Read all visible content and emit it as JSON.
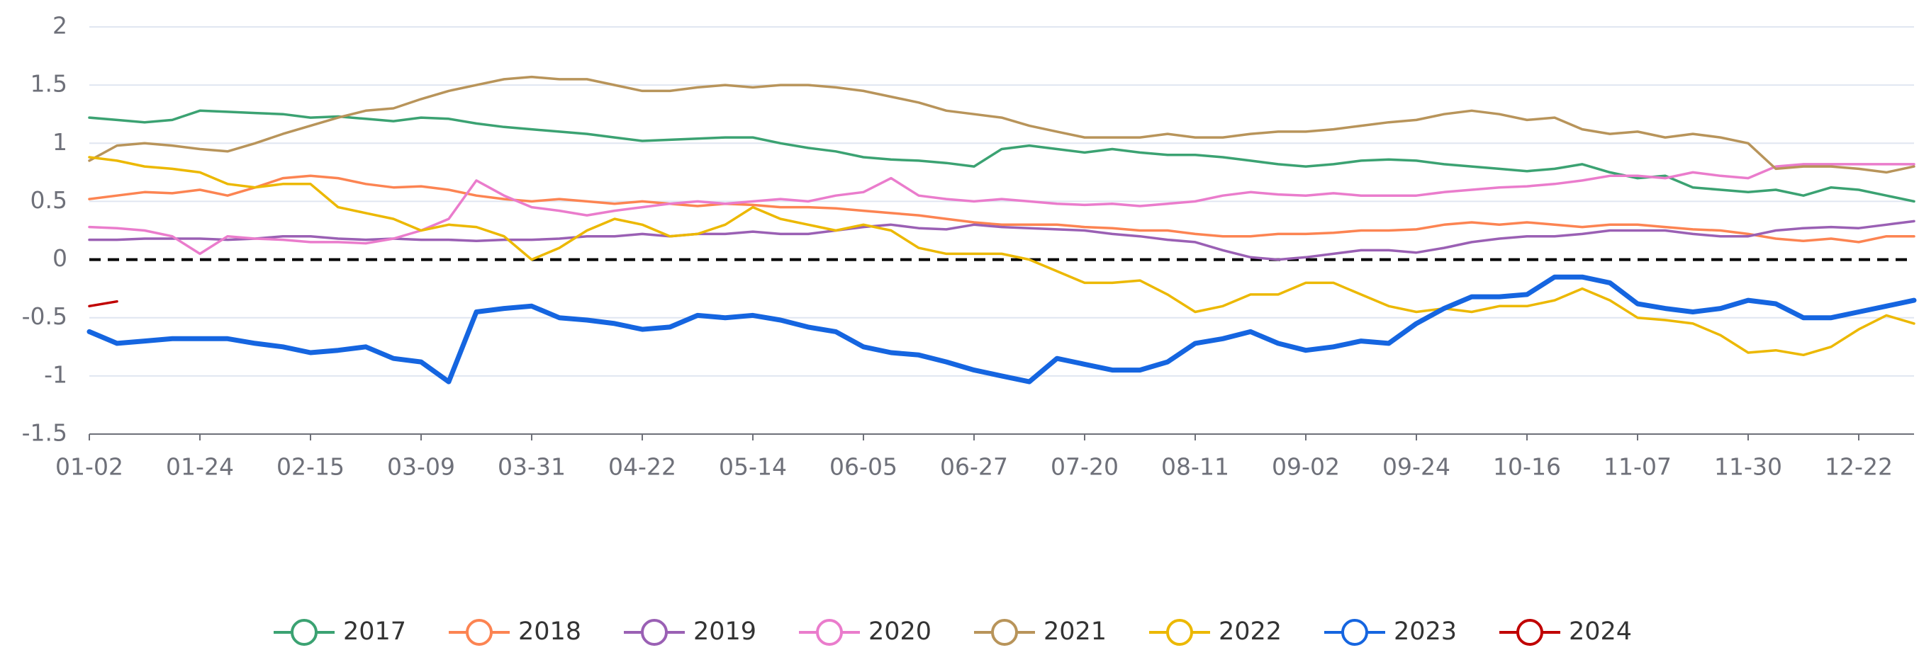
{
  "chart_data": {
    "type": "line",
    "categories": [
      "01-02",
      null,
      null,
      null,
      "01-24",
      null,
      null,
      null,
      "02-15",
      null,
      null,
      null,
      "03-09",
      null,
      null,
      null,
      "03-31",
      null,
      null,
      null,
      "04-22",
      null,
      null,
      null,
      "05-14",
      null,
      null,
      null,
      "06-05",
      null,
      null,
      null,
      "06-27",
      null,
      null,
      null,
      "07-20",
      null,
      null,
      null,
      "08-11",
      null,
      null,
      null,
      "09-02",
      null,
      null,
      null,
      "09-24",
      null,
      null,
      null,
      "10-16",
      null,
      null,
      null,
      "11-07",
      null,
      null,
      null,
      "11-30",
      null,
      null,
      null,
      "12-22",
      null,
      null
    ],
    "series": [
      {
        "name": "2017",
        "color": "#3ba272",
        "values": [
          1.22,
          1.2,
          1.18,
          1.2,
          1.28,
          1.27,
          1.26,
          1.25,
          1.22,
          1.23,
          1.21,
          1.19,
          1.22,
          1.21,
          1.17,
          1.14,
          1.12,
          1.1,
          1.08,
          1.05,
          1.02,
          1.03,
          1.04,
          1.05,
          1.05,
          1.0,
          0.96,
          0.93,
          0.88,
          0.86,
          0.85,
          0.83,
          0.8,
          0.95,
          0.98,
          0.95,
          0.92,
          0.95,
          0.92,
          0.9,
          0.9,
          0.88,
          0.85,
          0.82,
          0.8,
          0.82,
          0.85,
          0.86,
          0.85,
          0.82,
          0.8,
          0.78,
          0.76,
          0.78,
          0.82,
          0.75,
          0.7,
          0.72,
          0.62,
          0.6,
          0.58,
          0.6,
          0.55,
          0.62,
          0.6,
          0.55,
          0.5
        ]
      },
      {
        "name": "2018",
        "color": "#fc8452",
        "values": [
          0.52,
          0.55,
          0.58,
          0.57,
          0.6,
          0.55,
          0.62,
          0.7,
          0.72,
          0.7,
          0.65,
          0.62,
          0.63,
          0.6,
          0.55,
          0.52,
          0.5,
          0.52,
          0.5,
          0.48,
          0.5,
          0.48,
          0.46,
          0.48,
          0.47,
          0.45,
          0.45,
          0.44,
          0.42,
          0.4,
          0.38,
          0.35,
          0.32,
          0.3,
          0.3,
          0.3,
          0.28,
          0.27,
          0.25,
          0.25,
          0.22,
          0.2,
          0.2,
          0.22,
          0.22,
          0.23,
          0.25,
          0.25,
          0.26,
          0.3,
          0.32,
          0.3,
          0.32,
          0.3,
          0.28,
          0.3,
          0.3,
          0.28,
          0.26,
          0.25,
          0.22,
          0.18,
          0.16,
          0.18,
          0.15,
          0.2,
          0.2
        ]
      },
      {
        "name": "2019",
        "color": "#9a60b4",
        "values": [
          0.17,
          0.17,
          0.18,
          0.18,
          0.18,
          0.17,
          0.18,
          0.2,
          0.2,
          0.18,
          0.17,
          0.18,
          0.17,
          0.17,
          0.16,
          0.17,
          0.17,
          0.18,
          0.2,
          0.2,
          0.22,
          0.2,
          0.22,
          0.22,
          0.24,
          0.22,
          0.22,
          0.25,
          0.28,
          0.3,
          0.27,
          0.26,
          0.3,
          0.28,
          0.27,
          0.26,
          0.25,
          0.22,
          0.2,
          0.17,
          0.15,
          0.08,
          0.02,
          0.0,
          0.02,
          0.05,
          0.08,
          0.08,
          0.06,
          0.1,
          0.15,
          0.18,
          0.2,
          0.2,
          0.22,
          0.25,
          0.25,
          0.25,
          0.22,
          0.2,
          0.2,
          0.25,
          0.27,
          0.28,
          0.27,
          0.3,
          0.33
        ]
      },
      {
        "name": "2020",
        "color": "#ea7ccc",
        "values": [
          0.28,
          0.27,
          0.25,
          0.2,
          0.05,
          0.2,
          0.18,
          0.17,
          0.15,
          0.15,
          0.14,
          0.18,
          0.25,
          0.35,
          0.68,
          0.55,
          0.45,
          0.42,
          0.38,
          0.42,
          0.45,
          0.48,
          0.5,
          0.48,
          0.5,
          0.52,
          0.5,
          0.55,
          0.58,
          0.7,
          0.55,
          0.52,
          0.5,
          0.52,
          0.5,
          0.48,
          0.47,
          0.48,
          0.46,
          0.48,
          0.5,
          0.55,
          0.58,
          0.56,
          0.55,
          0.57,
          0.55,
          0.55,
          0.55,
          0.58,
          0.6,
          0.62,
          0.63,
          0.65,
          0.68,
          0.72,
          0.72,
          0.7,
          0.75,
          0.72,
          0.7,
          0.8,
          0.82,
          0.82,
          0.82,
          0.82,
          0.82
        ]
      },
      {
        "name": "2021",
        "color": "#b8945a",
        "values": [
          0.85,
          0.98,
          1.0,
          0.98,
          0.95,
          0.93,
          1.0,
          1.08,
          1.15,
          1.22,
          1.28,
          1.3,
          1.38,
          1.45,
          1.5,
          1.55,
          1.57,
          1.55,
          1.55,
          1.5,
          1.45,
          1.45,
          1.48,
          1.5,
          1.48,
          1.5,
          1.5,
          1.48,
          1.45,
          1.4,
          1.35,
          1.28,
          1.25,
          1.22,
          1.15,
          1.1,
          1.05,
          1.05,
          1.05,
          1.08,
          1.05,
          1.05,
          1.08,
          1.1,
          1.1,
          1.12,
          1.15,
          1.18,
          1.2,
          1.25,
          1.28,
          1.25,
          1.2,
          1.22,
          1.12,
          1.08,
          1.1,
          1.05,
          1.08,
          1.05,
          1.0,
          0.78,
          0.8,
          0.8,
          0.78,
          0.75,
          0.8
        ]
      },
      {
        "name": "2022",
        "color": "#ecb800",
        "values": [
          0.88,
          0.85,
          0.8,
          0.78,
          0.75,
          0.65,
          0.62,
          0.65,
          0.65,
          0.45,
          0.4,
          0.35,
          0.25,
          0.3,
          0.28,
          0.2,
          0.0,
          0.1,
          0.25,
          0.35,
          0.3,
          0.2,
          0.22,
          0.3,
          0.45,
          0.35,
          0.3,
          0.25,
          0.3,
          0.25,
          0.1,
          0.05,
          0.05,
          0.05,
          0.0,
          -0.1,
          -0.2,
          -0.2,
          -0.18,
          -0.3,
          -0.45,
          -0.4,
          -0.3,
          -0.3,
          -0.2,
          -0.2,
          -0.3,
          -0.4,
          -0.45,
          -0.42,
          -0.45,
          -0.4,
          -0.4,
          -0.35,
          -0.25,
          -0.35,
          -0.5,
          -0.52,
          -0.55,
          -0.65,
          -0.8,
          -0.78,
          -0.82,
          -0.75,
          -0.6,
          -0.48,
          -0.55
        ]
      },
      {
        "name": "2023",
        "color": "#1565e0",
        "values": [
          -0.62,
          -0.72,
          -0.7,
          -0.68,
          -0.68,
          -0.68,
          -0.72,
          -0.75,
          -0.8,
          -0.78,
          -0.75,
          -0.85,
          -0.88,
          -1.05,
          -0.45,
          -0.42,
          -0.4,
          -0.5,
          -0.52,
          -0.55,
          -0.6,
          -0.58,
          -0.48,
          -0.5,
          -0.48,
          -0.52,
          -0.58,
          -0.62,
          -0.75,
          -0.8,
          -0.82,
          -0.88,
          -0.95,
          -1.0,
          -1.05,
          -0.85,
          -0.9,
          -0.95,
          -0.95,
          -0.88,
          -0.72,
          -0.68,
          -0.62,
          -0.72,
          -0.78,
          -0.75,
          -0.7,
          -0.72,
          -0.55,
          -0.42,
          -0.32,
          -0.32,
          -0.3,
          -0.15,
          -0.15,
          -0.2,
          -0.38,
          -0.42,
          -0.45,
          -0.42,
          -0.35,
          -0.38,
          -0.5,
          -0.5,
          -0.45,
          -0.4,
          -0.35
        ]
      },
      {
        "name": "2024",
        "color": "#c00000",
        "values": [
          -0.4,
          -0.36,
          null,
          null,
          null,
          null,
          null,
          null,
          null,
          null,
          null,
          null,
          null,
          null,
          null,
          null,
          null,
          null,
          null,
          null,
          null,
          null,
          null,
          null,
          null,
          null,
          null,
          null,
          null,
          null,
          null,
          null,
          null,
          null,
          null,
          null,
          null,
          null,
          null,
          null,
          null,
          null,
          null,
          null,
          null,
          null,
          null,
          null,
          null,
          null,
          null,
          null,
          null,
          null,
          null,
          null,
          null,
          null,
          null,
          null,
          null,
          null,
          null,
          null,
          null,
          null,
          null
        ]
      }
    ],
    "ylim": [
      -1.5,
      2
    ],
    "yticks": [
      -1.5,
      -1,
      -0.5,
      0,
      0.5,
      1,
      1.5,
      2
    ],
    "grid": true,
    "legend": "bottom"
  }
}
